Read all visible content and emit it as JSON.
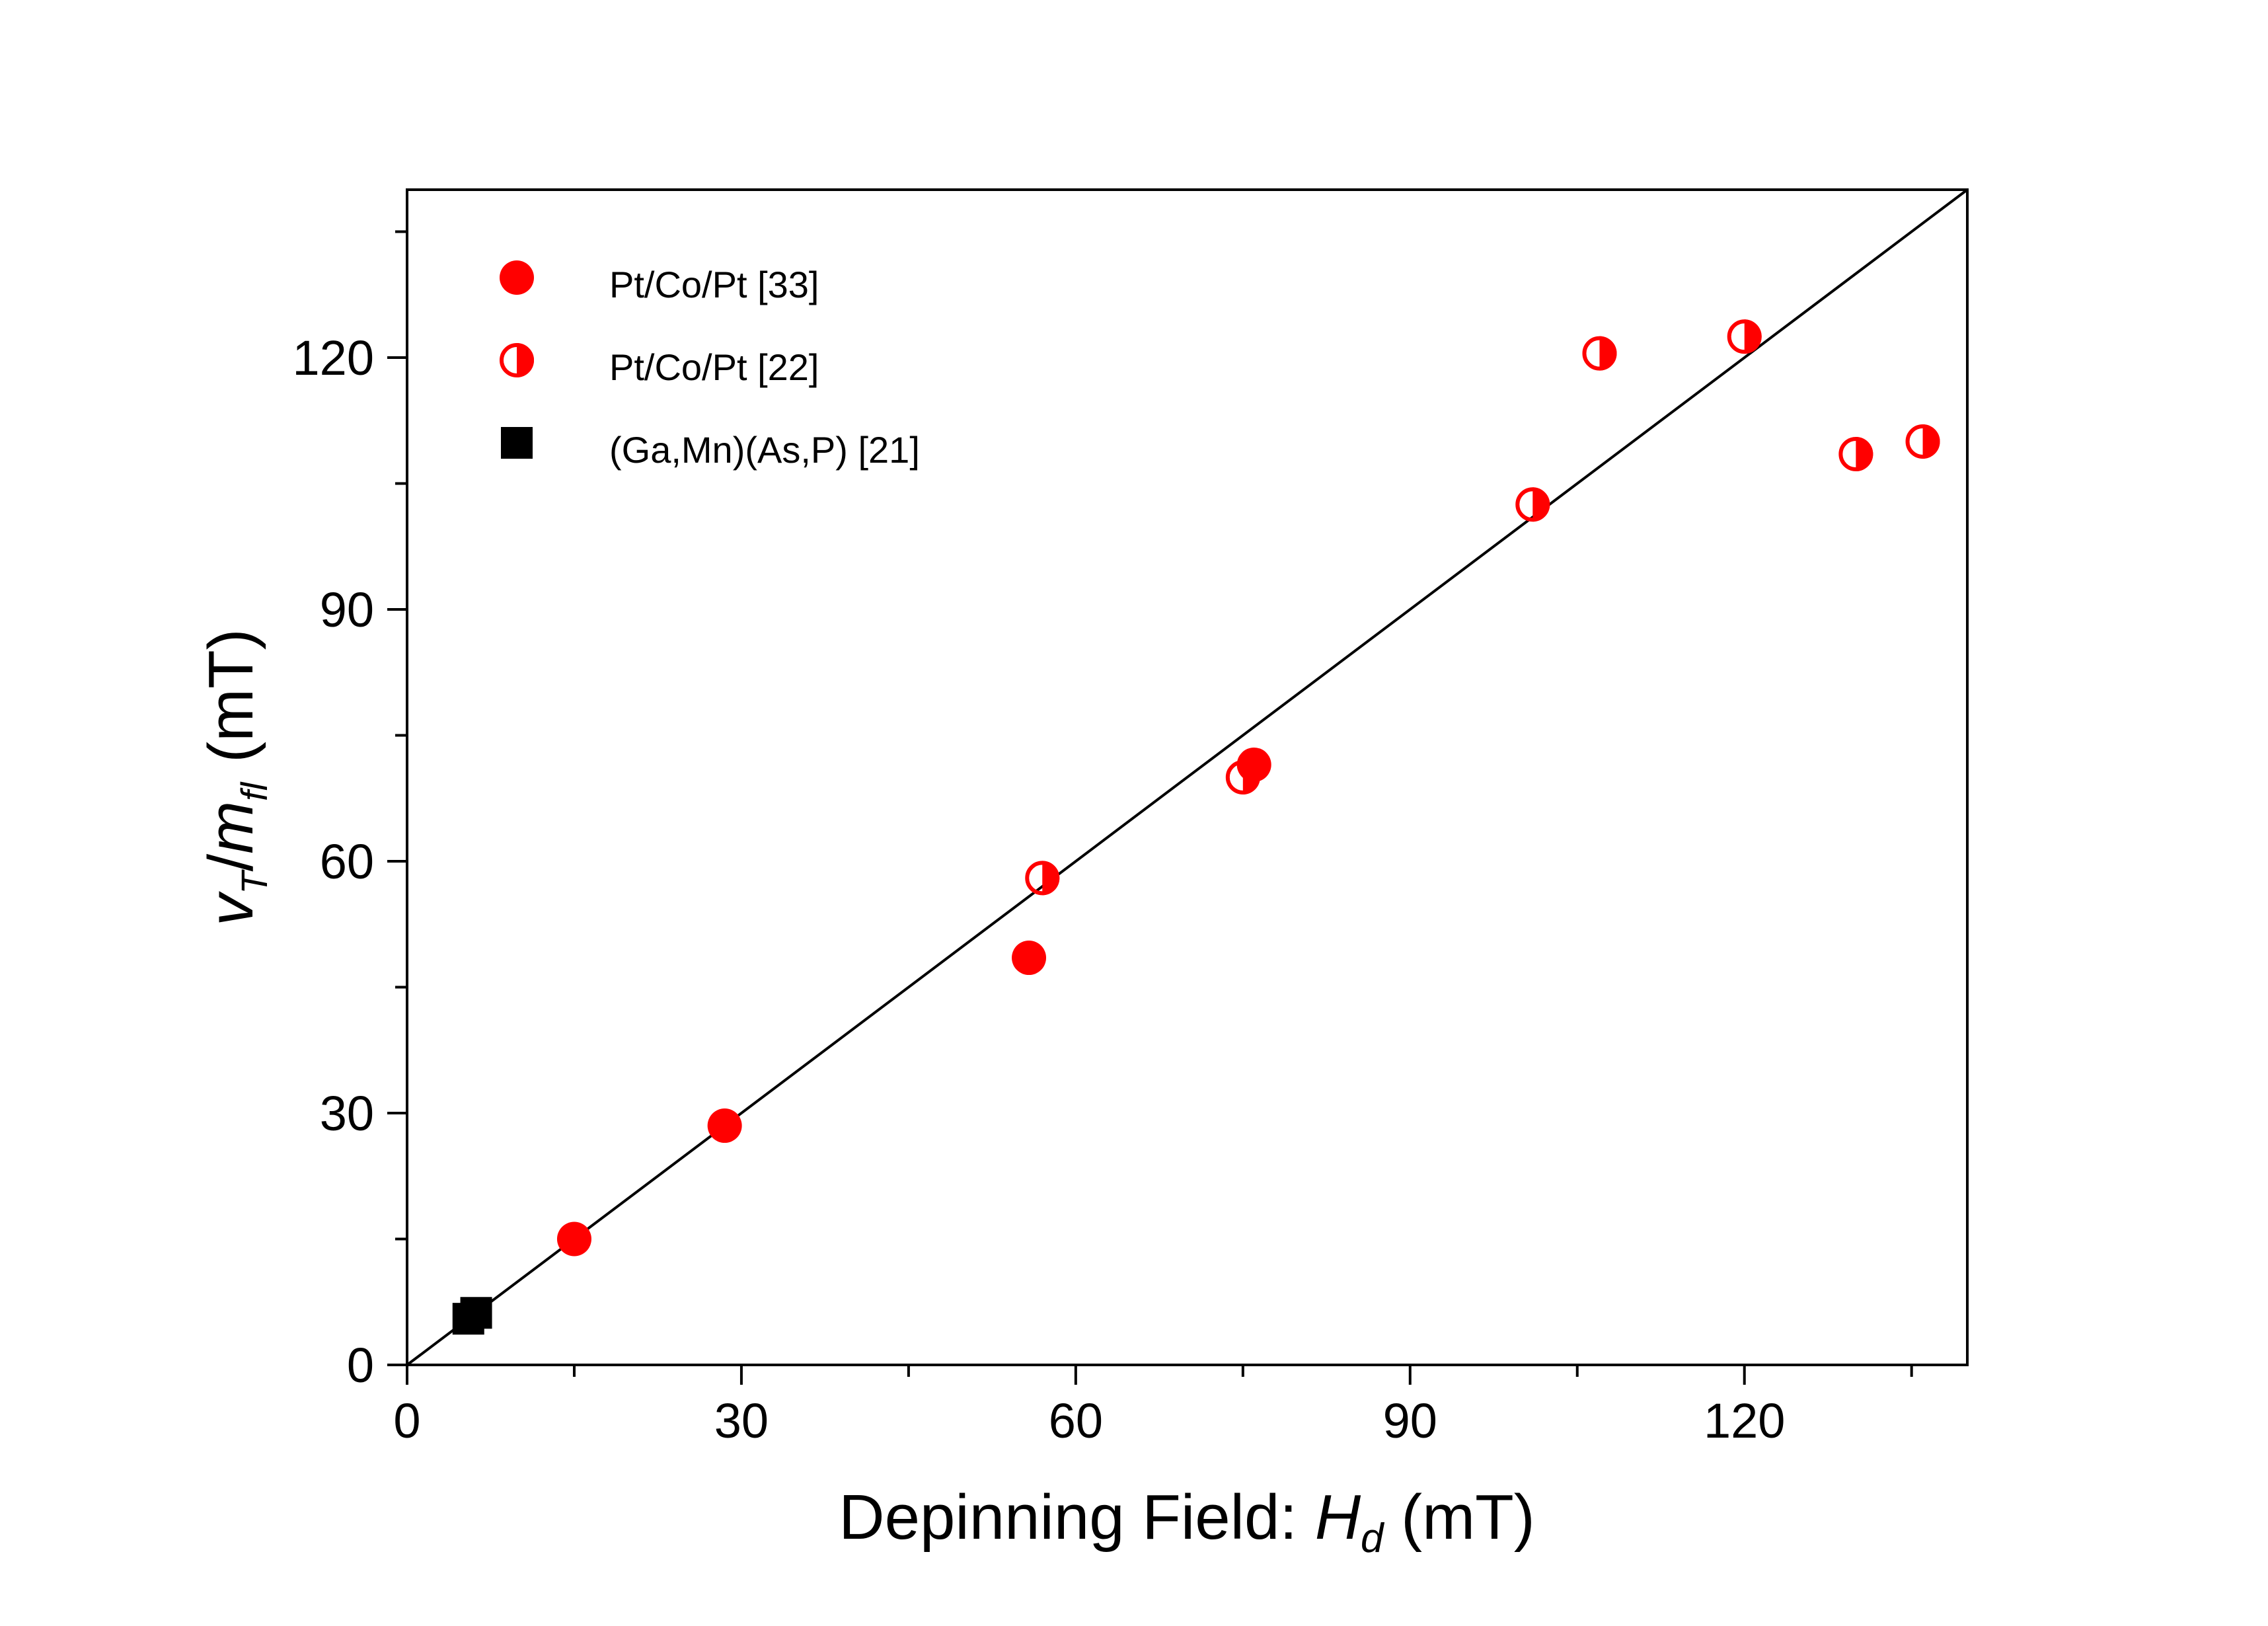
{
  "chart_data": {
    "type": "scatter",
    "title": "",
    "xlabel": {
      "main": "Depinning Field: ",
      "var": "H",
      "sub": "d",
      "unit": " (mT)"
    },
    "ylabel": {
      "v": "v",
      "v_sub": "T",
      "slash": "/",
      "m": "m",
      "m_sub": "fl",
      "unit": "(mT)"
    },
    "xlim": [
      0,
      140
    ],
    "ylim": [
      0,
      140
    ],
    "xticks": [
      0,
      30,
      60,
      90,
      120
    ],
    "yticks": [
      0,
      30,
      60,
      90,
      120
    ],
    "grid": false,
    "legend_position": "top-left",
    "series": [
      {
        "name": "Pt/Co/Pt  [33]",
        "marker": "filled-circle",
        "color": "#ff0000",
        "points": [
          [
            15,
            15
          ],
          [
            28.5,
            28.5
          ],
          [
            55.8,
            48.5
          ],
          [
            76,
            71.5
          ]
        ]
      },
      {
        "name": "Pt/Co/Pt  [22]",
        "marker": "half-filled-circle",
        "color": "#ff0000",
        "points": [
          [
            57,
            58
          ],
          [
            75,
            70
          ],
          [
            101,
            102.5
          ],
          [
            107,
            120.5
          ],
          [
            120,
            122.5
          ],
          [
            130,
            108.5
          ],
          [
            136,
            110
          ]
        ]
      },
      {
        "name": "(Ga,Mn)(As,P) [21]",
        "marker": "filled-square",
        "color": "#000000",
        "points": [
          [
            5.5,
            5.5
          ],
          [
            6.2,
            6.2
          ]
        ]
      }
    ],
    "reference_line": {
      "name": "y = x",
      "from": [
        0,
        0
      ],
      "to": [
        140,
        140
      ],
      "color": "#000000"
    }
  }
}
